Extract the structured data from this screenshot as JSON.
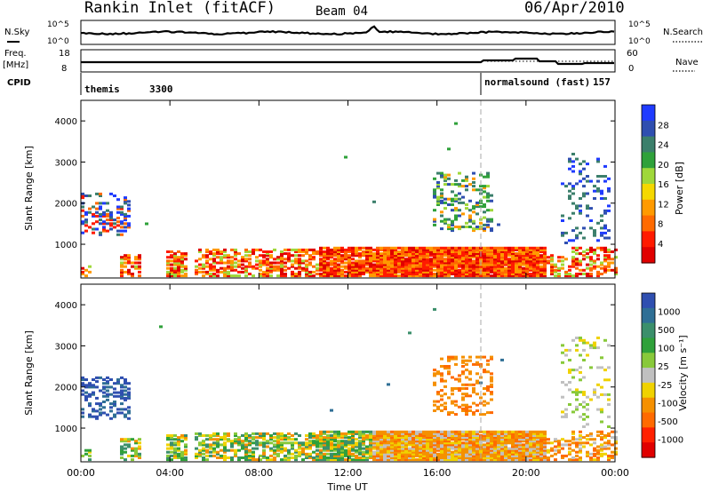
{
  "header": {
    "station": "Rankin Inlet (fitACF)",
    "beam": "Beam 04",
    "date": "06/Apr/2010"
  },
  "strip": {
    "nsky_label": "N.Sky",
    "nsky_ticks": [
      "10^5",
      "10^0"
    ],
    "nsearch_label": "N.Search",
    "nsearch_ticks": [
      "10^5",
      "10^0"
    ],
    "freq_label_line1": "Freq.",
    "freq_label_line2": "[MHz]",
    "freq_ticks": [
      "18",
      "8"
    ],
    "nave_label": "Nave",
    "nave_ticks": [
      "60",
      "0"
    ],
    "cpid_label": "CPID",
    "cpid_segments": [
      {
        "name": "themis",
        "id": "3300"
      },
      {
        "name": "normalsound (fast)",
        "id": "157"
      }
    ]
  },
  "colors": {
    "power": [
      "#1f3bff",
      "#2f4fb0",
      "#3b7f6b",
      "#2fa13a",
      "#9fd83a",
      "#f5d800",
      "#ff9a00",
      "#ff6a00",
      "#ff1a00",
      "#e00000"
    ],
    "velocity": [
      "#2f4fb0",
      "#2f6f95",
      "#3b8f6b",
      "#2fa13a",
      "#88c93a",
      "#c0c0c0",
      "#f0d200",
      "#f59000",
      "#ff6a00",
      "#ff2000",
      "#e00000"
    ]
  },
  "chart_data": [
    {
      "type": "heatmap",
      "name": "power",
      "ylabel": "Slant Range [km]",
      "y_ticks": [
        "1000",
        "2000",
        "3000",
        "4000"
      ],
      "ylim": [
        180,
        4500
      ],
      "x_ticks": [
        "00:00",
        "04:00",
        "08:00",
        "12:00",
        "16:00",
        "20:00",
        "00:00"
      ],
      "xlim_hours": [
        0,
        24
      ],
      "colorbar_label": "Power [dB]",
      "colorbar_ticks": [
        "28",
        "24",
        "20",
        "16",
        "12",
        "8",
        "4"
      ]
    },
    {
      "type": "heatmap",
      "name": "velocity",
      "ylabel": "Slant Range [km]",
      "y_ticks": [
        "1000",
        "2000",
        "3000",
        "4000"
      ],
      "ylim": [
        180,
        4500
      ],
      "x_ticks": [
        "00:00",
        "04:00",
        "08:00",
        "12:00",
        "16:00",
        "20:00",
        "00:00"
      ],
      "xlim_hours": [
        0,
        24
      ],
      "xlabel": "Time UT",
      "colorbar_label": "Velocity [m s⁻¹]",
      "colorbar_ticks": [
        "1000",
        "500",
        "100",
        "25",
        "-25",
        "-100",
        "-500",
        "-1000"
      ]
    }
  ]
}
